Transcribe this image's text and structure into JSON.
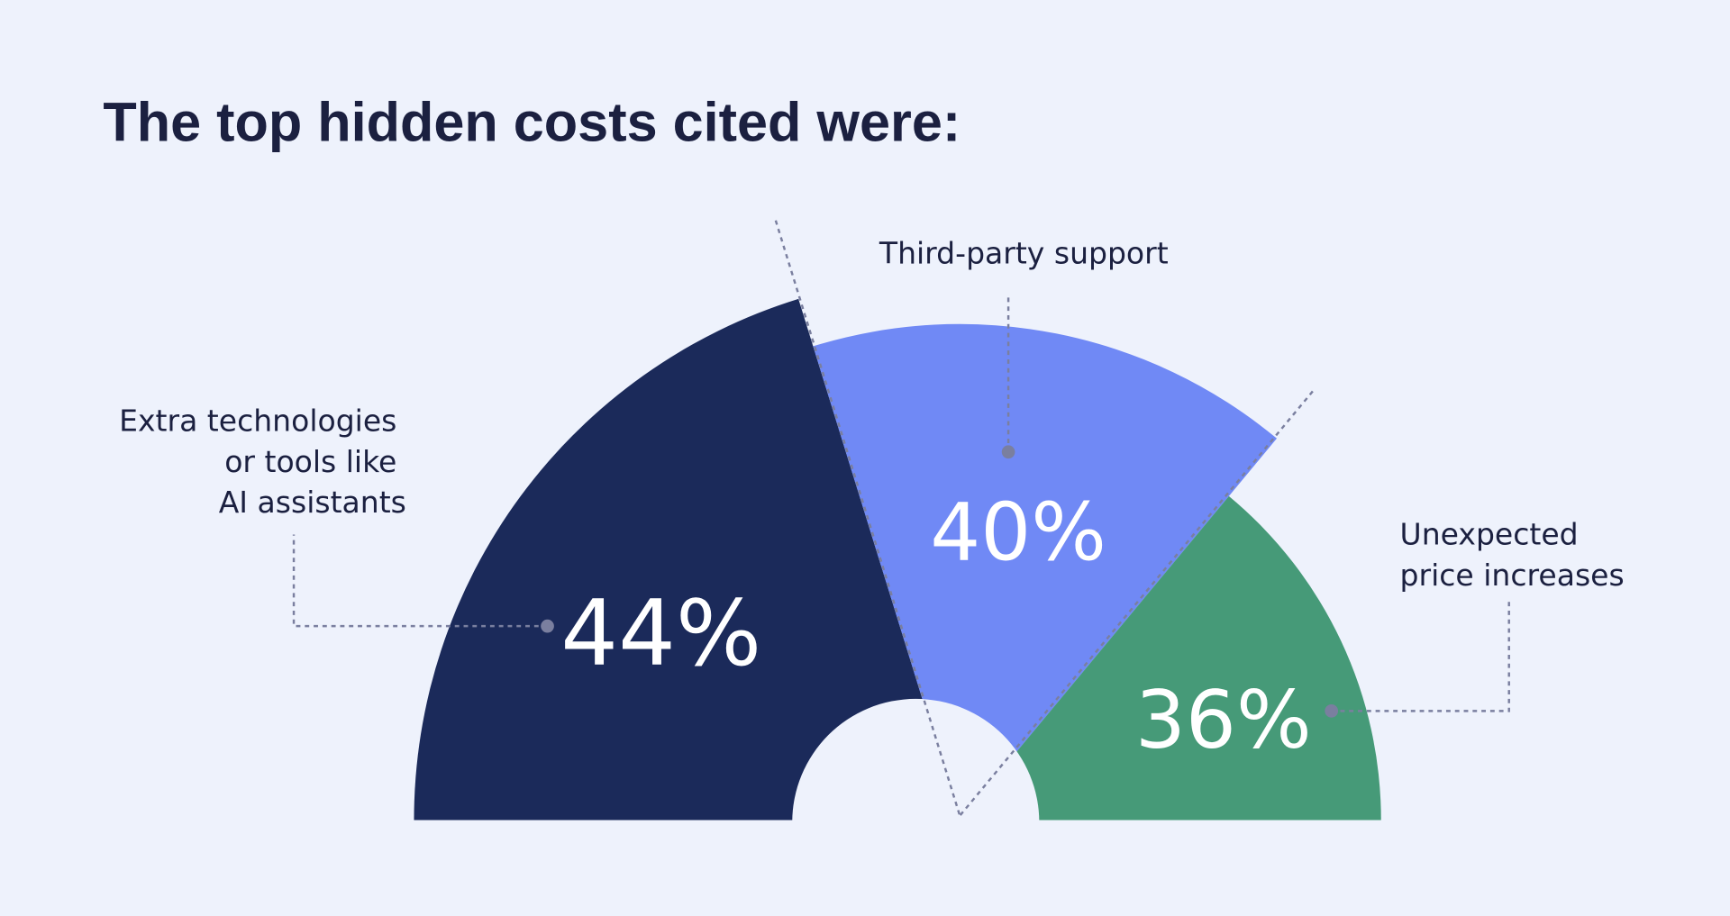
{
  "title": "The top hidden costs cited were:",
  "colors": {
    "background": "#eef2fc",
    "dark": "#1b2a5a",
    "blue": "#7089f5",
    "green": "#469a78",
    "text": "#1b2040"
  },
  "chart_data": {
    "type": "pie",
    "title": "The top hidden costs cited were:",
    "categories": [
      "Extra technologies or tools like AI assistants",
      "Third-party support",
      "Unexpected price increases"
    ],
    "values": [
      44,
      40,
      36
    ],
    "unit": "%",
    "labels": {
      "left": [
        "Extra technologies",
        "or tools like",
        "AI assistants"
      ],
      "middle": [
        "Third-party support"
      ],
      "right": [
        "Unexpected",
        "price increases"
      ]
    },
    "data_labels": [
      "44%",
      "40%",
      "36%"
    ]
  }
}
